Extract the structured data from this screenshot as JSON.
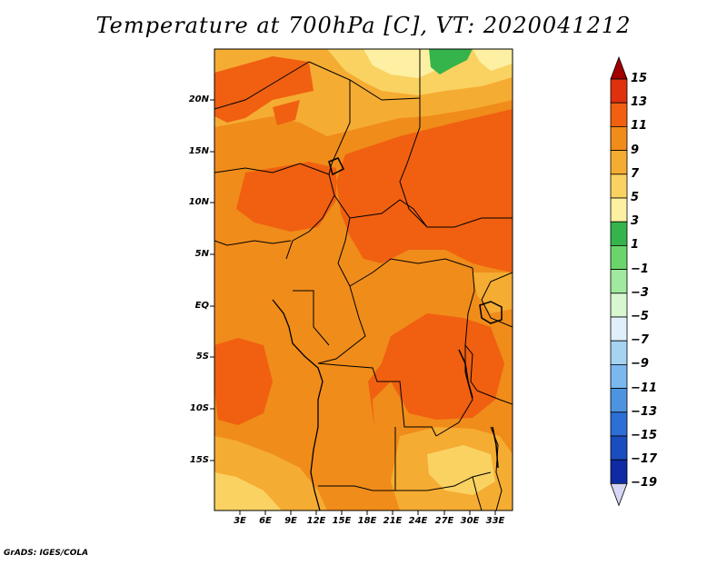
{
  "title": "Temperature at 700hPa [C], VT: 2020041212",
  "credit": "GrADS: IGES/COLA",
  "lat_labels": [
    "20N",
    "15N",
    "10N",
    "5N",
    "EQ",
    "5S",
    "10S",
    "15S"
  ],
  "lon_labels": [
    "3E",
    "6E",
    "9E",
    "12E",
    "15E",
    "18E",
    "21E",
    "24E",
    "27E",
    "30E",
    "33E"
  ],
  "colorbar": {
    "labels": [
      "15",
      "13",
      "11",
      "9",
      "7",
      "5",
      "3",
      "1",
      "−1",
      "−3",
      "−5",
      "−7",
      "−9",
      "−11",
      "−13",
      "−15",
      "−17",
      "−19"
    ],
    "colors": [
      "#a00000",
      "#e0300e",
      "#f06010",
      "#f08c1a",
      "#f5ac32",
      "#fad262",
      "#fdf0a2",
      "#34b44a",
      "#6ad56a",
      "#9fea9e",
      "#d6f7d0",
      "#dff0fb",
      "#a6d3f2",
      "#7ab8ed",
      "#4d94e0",
      "#2d6fd6",
      "#1b4dbe",
      "#0e2aa4",
      "#08106e"
    ],
    "under_color": "#d6d6f5",
    "over_color": "#a00000"
  },
  "field_colors": {
    "dominant": "#f08c1a",
    "warm": "#f06010",
    "mild": "#f5ac32",
    "cool": "#fad262",
    "cold": "#fdf0a2",
    "green": "#34b44a"
  }
}
